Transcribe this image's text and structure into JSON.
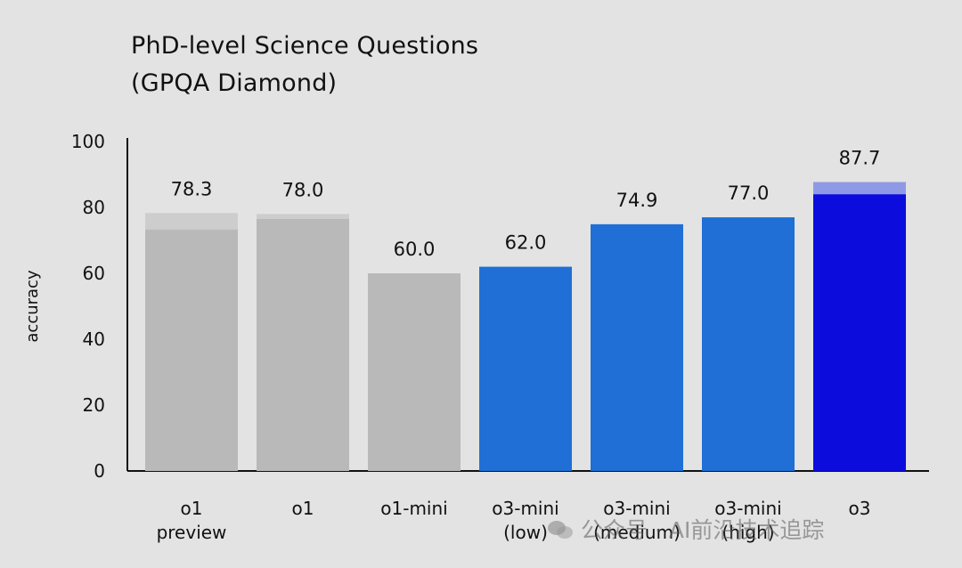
{
  "title_line1": "PhD-level Science Questions",
  "title_line2": "(GPQA Diamond)",
  "watermark": "公众号 · AI前沿技术追踪",
  "chart_data": {
    "type": "bar",
    "title": "PhD-level Science Questions (GPQA Diamond)",
    "ylabel": "accuracy",
    "xlabel": "",
    "ylim": [
      0,
      100
    ],
    "yticks": [
      0,
      20,
      40,
      60,
      80,
      100
    ],
    "grid": false,
    "categories": [
      [
        "o1",
        "preview"
      ],
      [
        "o1"
      ],
      [
        "o1-mini"
      ],
      [
        "o3-mini",
        "(low)"
      ],
      [
        "o3-mini",
        "(medium)"
      ],
      [
        "o3-mini",
        "(high)"
      ],
      [
        "o3"
      ]
    ],
    "values": [
      78.3,
      78.0,
      60.0,
      62.0,
      74.9,
      77.0,
      87.7
    ],
    "value_labels": [
      "78.3",
      "78.0",
      "60.0",
      "62.0",
      "74.9",
      "77.0",
      "87.7"
    ],
    "base_values": [
      73.3,
      76.5,
      60.0,
      62.0,
      74.9,
      77.0,
      84.0
    ],
    "colors": {
      "gray_base": "#b9b9b9",
      "gray_top": "#cdcdcd",
      "blue": "#1f6fd6",
      "o3_base": "#0c0cdc",
      "o3_top": "#8f9ae6",
      "axis": "#111111",
      "background": "#e3e3e3"
    },
    "bar_colors": [
      "gray",
      "gray",
      "gray",
      "blue",
      "blue",
      "blue",
      "o3"
    ]
  }
}
